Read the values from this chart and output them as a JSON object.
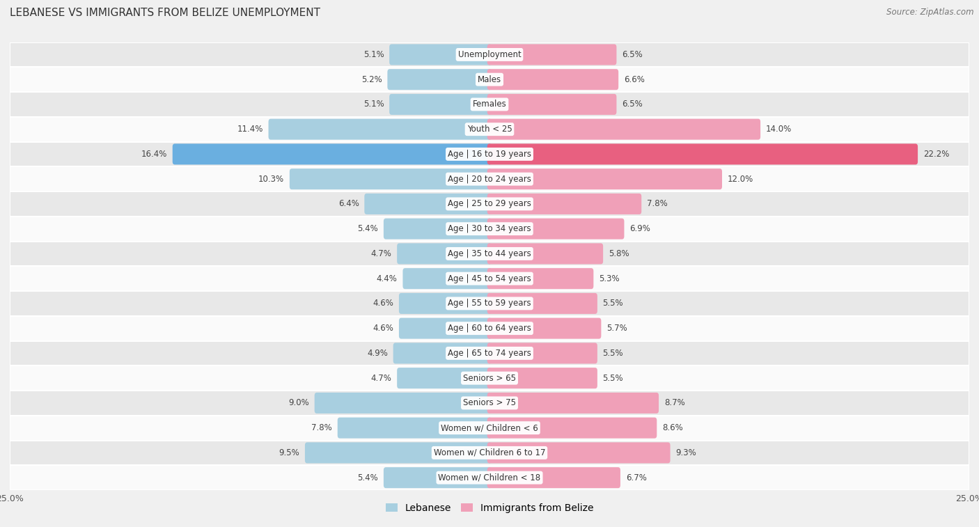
{
  "title": "LEBANESE VS IMMIGRANTS FROM BELIZE UNEMPLOYMENT",
  "source": "Source: ZipAtlas.com",
  "categories": [
    "Unemployment",
    "Males",
    "Females",
    "Youth < 25",
    "Age | 16 to 19 years",
    "Age | 20 to 24 years",
    "Age | 25 to 29 years",
    "Age | 30 to 34 years",
    "Age | 35 to 44 years",
    "Age | 45 to 54 years",
    "Age | 55 to 59 years",
    "Age | 60 to 64 years",
    "Age | 65 to 74 years",
    "Seniors > 65",
    "Seniors > 75",
    "Women w/ Children < 6",
    "Women w/ Children 6 to 17",
    "Women w/ Children < 18"
  ],
  "lebanese": [
    5.1,
    5.2,
    5.1,
    11.4,
    16.4,
    10.3,
    6.4,
    5.4,
    4.7,
    4.4,
    4.6,
    4.6,
    4.9,
    4.7,
    9.0,
    7.8,
    9.5,
    5.4
  ],
  "belize": [
    6.5,
    6.6,
    6.5,
    14.0,
    22.2,
    12.0,
    7.8,
    6.9,
    5.8,
    5.3,
    5.5,
    5.7,
    5.5,
    5.5,
    8.7,
    8.6,
    9.3,
    6.7
  ],
  "lebanese_color": "#a8cfe0",
  "belize_color": "#f0a0b8",
  "lebanese_color_highlight": "#6aafe0",
  "belize_color_highlight": "#e86080",
  "bg_color": "#f0f0f0",
  "row_odd_color": "#e8e8e8",
  "row_even_color": "#fafafa",
  "xlim": 25.0,
  "bar_height": 0.6,
  "highlight_idx": 4
}
